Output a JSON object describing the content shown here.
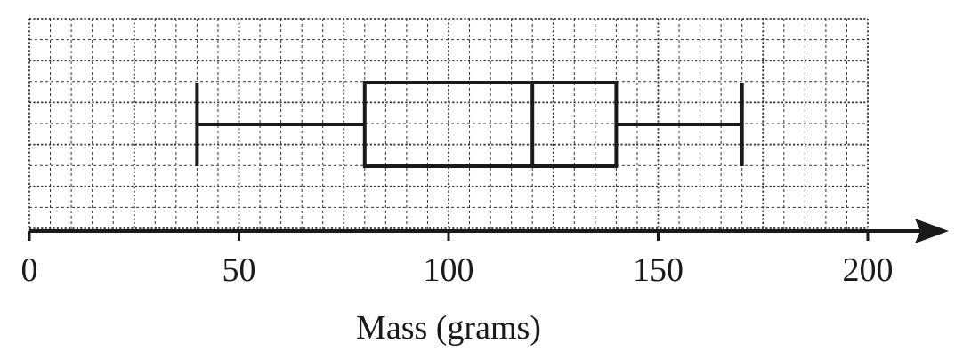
{
  "chart_data": {
    "type": "box",
    "xlabel": "Mass (grams)",
    "xlim": [
      0,
      200
    ],
    "tick_values": [
      0,
      50,
      100,
      150,
      200
    ],
    "tick_labels": [
      "0",
      "50",
      "100",
      "150",
      "200"
    ],
    "grid": true,
    "minor_grid_step": 5,
    "major_grid_step": 25,
    "box": {
      "min": 40,
      "q1": 80,
      "median": 120,
      "q3": 140,
      "max": 170
    },
    "colors": {
      "ink": "#1a1a1a",
      "grid": "#333333"
    }
  }
}
